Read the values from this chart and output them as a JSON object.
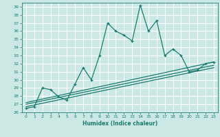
{
  "xlabel": "Humidex (Indice chaleur)",
  "background_color": "#cce8e4",
  "grid_color": "#ffffff",
  "line_color": "#1a7a6e",
  "xlim": [
    -0.5,
    23.5
  ],
  "ylim": [
    26,
    39.5
  ],
  "xticks": [
    0,
    1,
    2,
    3,
    4,
    5,
    6,
    7,
    8,
    9,
    10,
    11,
    12,
    13,
    14,
    15,
    16,
    17,
    18,
    19,
    20,
    21,
    22,
    23
  ],
  "yticks": [
    26,
    27,
    28,
    29,
    30,
    31,
    32,
    33,
    34,
    35,
    36,
    37,
    38,
    39
  ],
  "series1_x": [
    0,
    1,
    2,
    3,
    4,
    5,
    6,
    7,
    8,
    9,
    10,
    11,
    12,
    13,
    14,
    15,
    16,
    17,
    18,
    19,
    20,
    21,
    22,
    23
  ],
  "series1_y": [
    26.5,
    26.7,
    29.0,
    28.8,
    27.9,
    27.5,
    29.5,
    31.5,
    30.0,
    33.0,
    37.0,
    36.0,
    35.5,
    34.8,
    39.2,
    36.0,
    37.3,
    33.0,
    33.8,
    33.0,
    31.0,
    31.2,
    32.0,
    32.2
  ],
  "series2_x": [
    0,
    23
  ],
  "series2_y": [
    27.2,
    32.2
  ],
  "series3_x": [
    0,
    23
  ],
  "series3_y": [
    27.0,
    31.8
  ],
  "series4_x": [
    0,
    23
  ],
  "series4_y": [
    26.7,
    31.5
  ]
}
